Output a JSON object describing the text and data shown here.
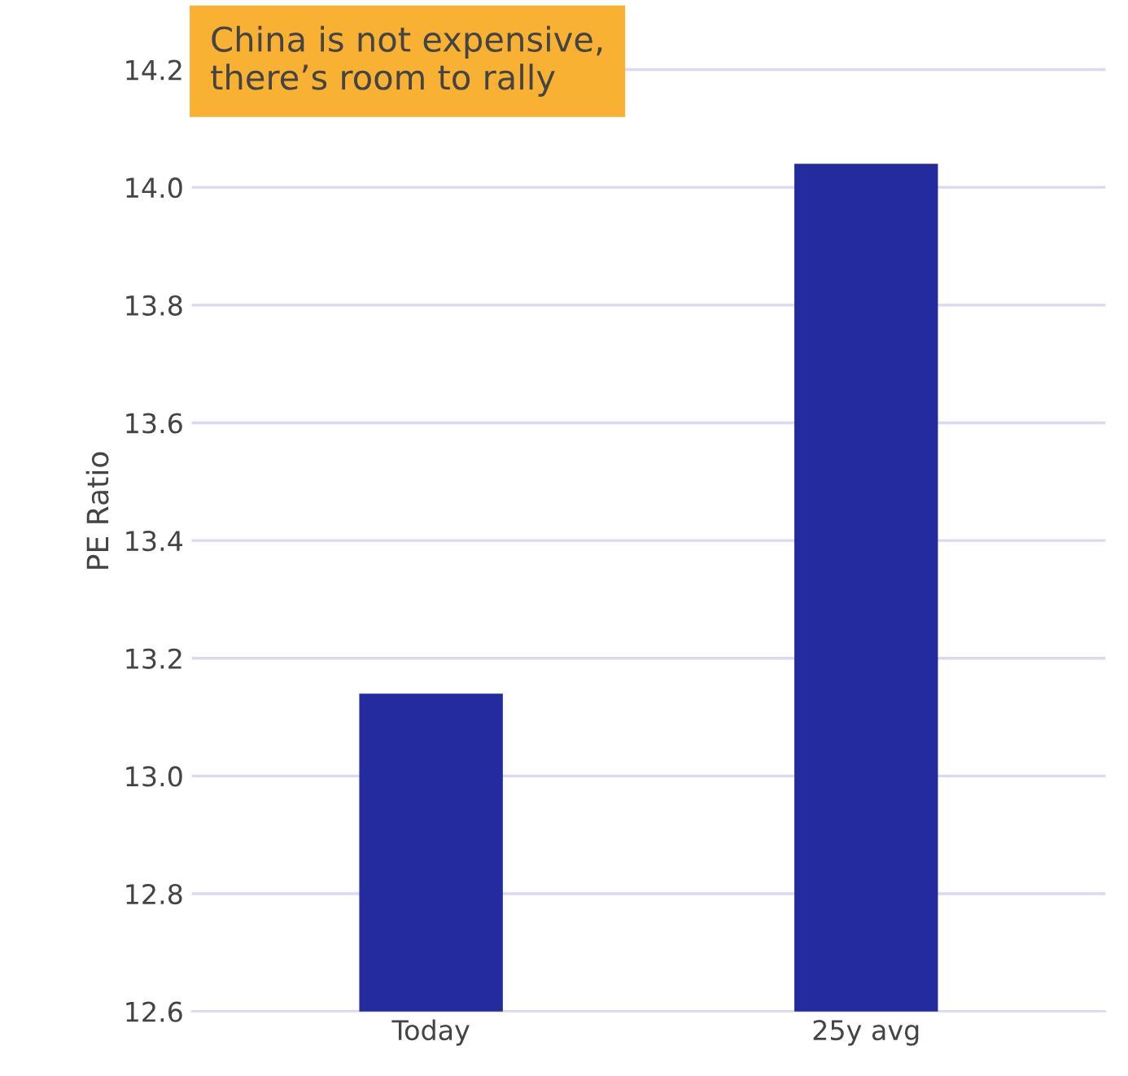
{
  "chart_data": {
    "type": "bar",
    "ylabel": "PE Ratio",
    "categories": [
      "Today",
      "25y avg"
    ],
    "values": [
      13.14,
      14.04
    ],
    "color": "#232b9e",
    "ylim": [
      12.6,
      14.3
    ],
    "yticks": [
      {
        "value": 12.6,
        "label": "12.6"
      },
      {
        "value": 12.8,
        "label": "12.8"
      },
      {
        "value": 13.0,
        "label": "13.0"
      },
      {
        "value": 13.2,
        "label": "13.2"
      },
      {
        "value": 13.4,
        "label": "13.4"
      },
      {
        "value": 13.6,
        "label": "13.6"
      },
      {
        "value": 13.8,
        "label": "13.8"
      },
      {
        "value": 14.0,
        "label": "14.0"
      },
      {
        "value": 14.2,
        "label": "14.2"
      }
    ],
    "grid": "y",
    "annotations": [
      "China is not expensive,\nthere’s room to rally"
    ]
  }
}
